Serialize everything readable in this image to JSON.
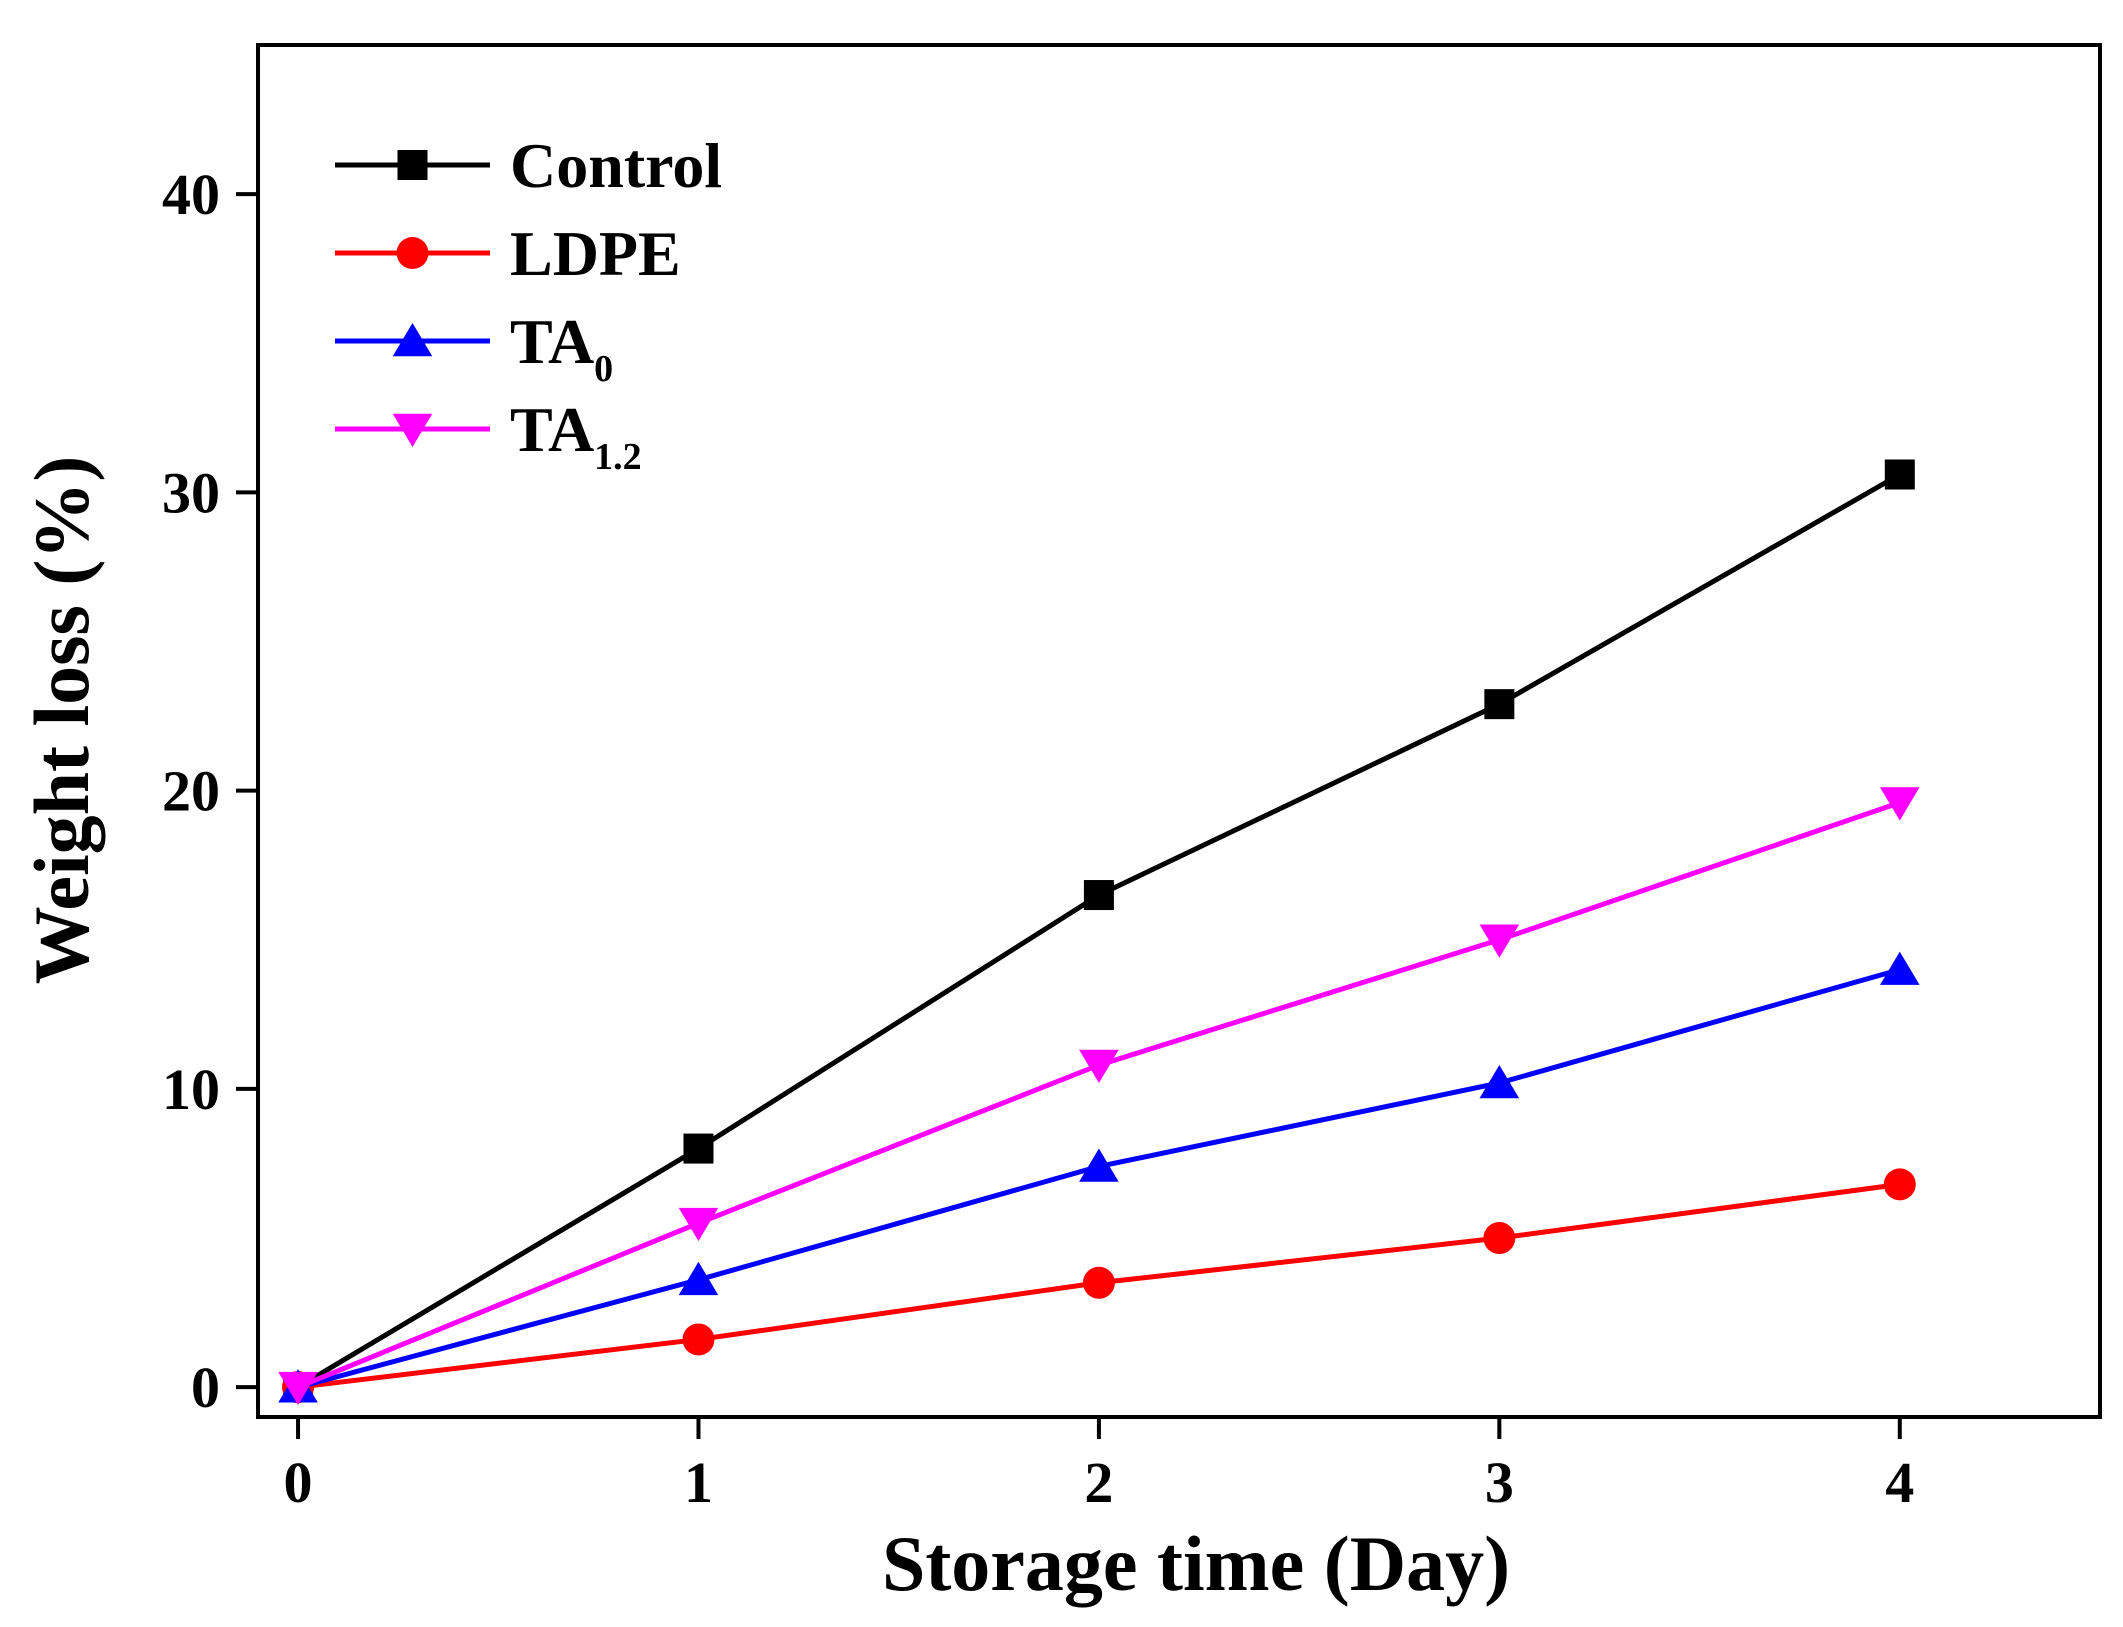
{
  "chart_data": {
    "type": "line",
    "title": "",
    "xlabel": "Storage time (Day)",
    "ylabel": "Weight loss (%)",
    "xlim": [
      -0.1,
      4.5
    ],
    "ylim": [
      -1,
      45
    ],
    "x_ticks": [
      0,
      1,
      2,
      3,
      4
    ],
    "y_ticks": [
      0,
      10,
      20,
      30,
      40
    ],
    "x_tick_labels": [
      "0",
      "1",
      "2",
      "3",
      "4"
    ],
    "y_tick_labels": [
      "0",
      "10",
      "20",
      "30",
      "40"
    ],
    "grid": false,
    "legend_position": "top-left",
    "x": [
      0,
      1,
      2,
      3,
      4
    ],
    "series": [
      {
        "name": "Control",
        "base": "Control",
        "sub": "",
        "color": "#000000",
        "marker": "square",
        "values": [
          0,
          8.0,
          16.5,
          22.9,
          30.6
        ]
      },
      {
        "name": "LDPE",
        "base": "LDPE",
        "sub": "",
        "color": "#ff0000",
        "marker": "circle",
        "values": [
          0,
          1.6,
          3.5,
          5.0,
          6.8
        ]
      },
      {
        "name": "TA0",
        "base": "TA",
        "sub": "0",
        "color": "#0000ff",
        "marker": "triangle-up",
        "values": [
          0,
          3.6,
          7.4,
          10.2,
          14.0
        ]
      },
      {
        "name": "TA1.2",
        "base": "TA",
        "sub": "1.2",
        "color": "#ff00ff",
        "marker": "triangle-down",
        "values": [
          0,
          5.5,
          10.8,
          15.0,
          19.6
        ]
      }
    ]
  }
}
